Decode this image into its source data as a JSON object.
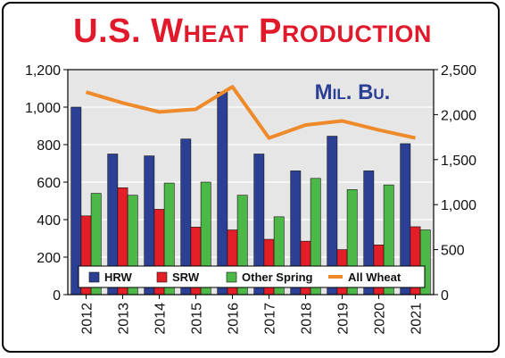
{
  "title": "U.S. Wheat Production",
  "chart_data": {
    "type": "bar",
    "title": "U.S. Wheat Production",
    "unit_label": "Mil. Bu.",
    "categories": [
      "2012",
      "2013",
      "2014",
      "2015",
      "2016",
      "2017",
      "2018",
      "2019",
      "2020",
      "2021"
    ],
    "series": [
      {
        "name": "HRW",
        "type": "bar",
        "axis": "left",
        "color": "#2b3f95",
        "values": [
          1000,
          750,
          740,
          830,
          1080,
          750,
          660,
          845,
          660,
          805
        ]
      },
      {
        "name": "SRW",
        "type": "bar",
        "axis": "left",
        "color": "#e31e26",
        "values": [
          420,
          570,
          455,
          360,
          345,
          295,
          285,
          240,
          265,
          362
        ]
      },
      {
        "name": "Other Spring",
        "type": "bar",
        "axis": "left",
        "color": "#4cb848",
        "values": [
          540,
          530,
          595,
          600,
          530,
          415,
          620,
          560,
          585,
          345
        ]
      },
      {
        "name": "All Wheat",
        "type": "line",
        "axis": "right",
        "color": "#ee8a2a",
        "values": [
          2250,
          2130,
          2030,
          2060,
          2310,
          1740,
          1885,
          1930,
          1830,
          1740
        ]
      }
    ],
    "y_left": {
      "min": 0,
      "max": 1200,
      "ticks": [
        "0",
        "200",
        "400",
        "600",
        "800",
        "1,000",
        "1,200"
      ]
    },
    "y_right": {
      "min": 0,
      "max": 2500,
      "ticks": [
        "0",
        "500",
        "1,000",
        "1,500",
        "2,000",
        "2,500"
      ]
    },
    "grid": true,
    "legend_position": "bottom-inside"
  }
}
